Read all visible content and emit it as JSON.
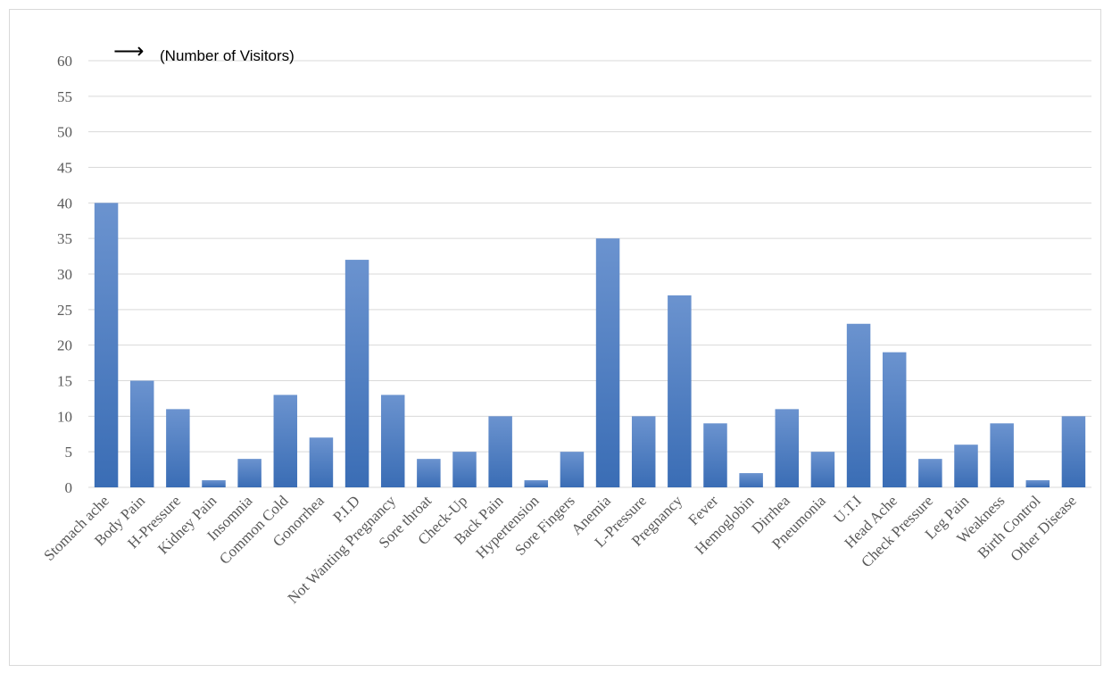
{
  "chart_data": {
    "type": "bar",
    "ylabel": "(Number of Visitors)",
    "ylabel_arrow": "⟶",
    "ylim": [
      0,
      60
    ],
    "yticks": [
      0,
      5,
      10,
      15,
      20,
      25,
      30,
      35,
      40,
      45,
      50,
      55,
      60
    ],
    "grid": true,
    "legend": "none",
    "categories": [
      "Stomach ache",
      "Body Pain",
      "H-Pressure",
      "Kidney Pain",
      "Insomnia",
      "Common Cold",
      "Gonorrhea",
      "P.I.D",
      "Not Wanting Pregnancy",
      "Sore throat",
      "Check-Up",
      "Back Pain",
      "Hypertension",
      "Sore Fingers",
      "Anemia",
      "L-Pressure",
      "Pregnancy",
      "Fever",
      "Hemoglobin",
      "Dirrhea",
      "Pneumonia",
      "U.T.I",
      "Head Ache",
      "Check Pressure",
      "Leg Pain",
      "Weakness",
      "Birth Control",
      "Other Disease"
    ],
    "values": [
      40,
      15,
      11,
      1,
      4,
      13,
      7,
      32,
      13,
      4,
      5,
      10,
      1,
      5,
      35,
      10,
      27,
      9,
      2,
      11,
      5,
      23,
      19,
      4,
      6,
      9,
      1,
      10
    ],
    "colors": {
      "bar_top": "#6b93cf",
      "bar_bottom": "#3a6db5",
      "grid": "#d9d9d9",
      "axis": "#d9d9d9"
    }
  }
}
